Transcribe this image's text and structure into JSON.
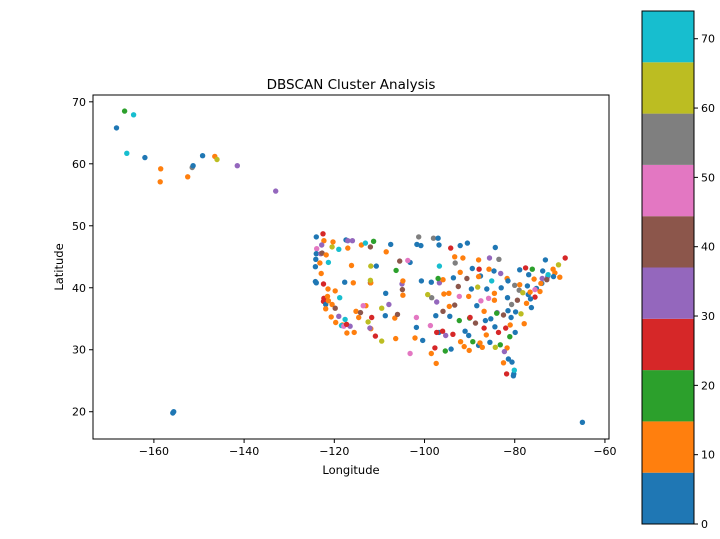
{
  "chart_data": {
    "type": "scatter",
    "title": "DBSCAN Cluster Analysis",
    "xlabel": "Longitude",
    "ylabel": "Latitude",
    "xlim": [
      -173.5,
      -59.1
    ],
    "ylim": [
      15.6,
      71.1
    ],
    "xticks": [
      -160,
      -140,
      -120,
      -100,
      -80,
      -60
    ],
    "yticks": [
      20,
      30,
      40,
      50,
      60,
      70
    ],
    "grid": false,
    "colorbar": {
      "range": [
        0,
        74
      ],
      "ticks": [
        0,
        10,
        20,
        30,
        40,
        50,
        60,
        70
      ],
      "colormap": "tab10",
      "colors": [
        "#1f77b4",
        "#ff7f0e",
        "#2ca02c",
        "#d62728",
        "#9467bd",
        "#8c564b",
        "#e377c2",
        "#7f7f7f",
        "#bcbd22",
        "#17becf"
      ]
    },
    "points": [
      [
        -166.5,
        68.5,
        18
      ],
      [
        -164.5,
        67.9,
        70
      ],
      [
        -168.3,
        65.8,
        3
      ],
      [
        -166,
        61.7,
        70
      ],
      [
        -162,
        61,
        3
      ],
      [
        -158.5,
        59.2,
        10
      ],
      [
        -158.6,
        57.1,
        10
      ],
      [
        -152.5,
        57.9,
        10
      ],
      [
        -151.5,
        59.4,
        55
      ],
      [
        -151.3,
        59.7,
        3
      ],
      [
        -149.2,
        61.3,
        3
      ],
      [
        -146.5,
        61.2,
        10
      ],
      [
        -146,
        60.7,
        62
      ],
      [
        -141.5,
        59.7,
        33
      ],
      [
        -133,
        55.6,
        33
      ],
      [
        -155.8,
        19.8,
        3
      ],
      [
        -155.6,
        20,
        3
      ],
      [
        -65,
        18.3,
        3
      ],
      [
        -124,
        48.2,
        3
      ],
      [
        -122.5,
        48.7,
        25
      ],
      [
        -122.3,
        47.6,
        10
      ],
      [
        -122.8,
        46.9,
        33
      ],
      [
        -123.9,
        46.3,
        48
      ],
      [
        -124,
        45.5,
        3
      ],
      [
        -123,
        45.5,
        33
      ],
      [
        -122.7,
        45.6,
        40
      ],
      [
        -121.8,
        45.3,
        10
      ],
      [
        -124.1,
        44.6,
        3
      ],
      [
        -123.2,
        44,
        10
      ],
      [
        -121.3,
        44.1,
        70
      ],
      [
        -124.2,
        43.4,
        3
      ],
      [
        -122.9,
        42.3,
        10
      ],
      [
        -124.2,
        41,
        3
      ],
      [
        -124,
        40.8,
        3
      ],
      [
        -122.4,
        40.6,
        25
      ],
      [
        -121.4,
        39.8,
        10
      ],
      [
        -122.3,
        38.3,
        25
      ],
      [
        -121.5,
        38.6,
        10
      ],
      [
        -122.4,
        37.8,
        25
      ],
      [
        -121.9,
        37.3,
        3
      ],
      [
        -121.3,
        37.9,
        10
      ],
      [
        -120.5,
        37.3,
        10
      ],
      [
        -119.8,
        36.7,
        40
      ],
      [
        -121.9,
        36.6,
        10
      ],
      [
        -120.7,
        35.3,
        10
      ],
      [
        -119,
        35.4,
        33
      ],
      [
        -119.7,
        34.4,
        10
      ],
      [
        -118.2,
        34,
        10
      ],
      [
        -118.4,
        33.9,
        70
      ],
      [
        -117.9,
        33.8,
        48
      ],
      [
        -117.2,
        32.7,
        10
      ],
      [
        -116.5,
        33.8,
        33
      ],
      [
        -117.3,
        34.1,
        25
      ],
      [
        -115.6,
        32.8,
        10
      ],
      [
        -117.6,
        34.9,
        70
      ],
      [
        -118.8,
        38.4,
        70
      ],
      [
        -119.8,
        39.5,
        10
      ],
      [
        -117.7,
        40.9,
        3
      ],
      [
        -115.8,
        40.8,
        10
      ],
      [
        -114.6,
        35.2,
        10
      ],
      [
        -115.2,
        36.2,
        10
      ],
      [
        -114.2,
        36,
        40
      ],
      [
        -113,
        37.1,
        10
      ],
      [
        -112,
        40.8,
        40
      ],
      [
        -111.9,
        40.8,
        10
      ],
      [
        -112,
        41.2,
        62
      ],
      [
        -111.9,
        43.5,
        62
      ],
      [
        -116.2,
        43.6,
        10
      ],
      [
        -117,
        46.4,
        10
      ],
      [
        -117.4,
        47.7,
        3
      ],
      [
        -119,
        46.2,
        70
      ],
      [
        -120.5,
        46.6,
        62
      ],
      [
        -120.3,
        47.4,
        10
      ],
      [
        -117,
        47.6,
        33
      ],
      [
        -114,
        46.9,
        10
      ],
      [
        -112,
        46.6,
        40
      ],
      [
        -111.3,
        47.5,
        18
      ],
      [
        -108.5,
        45.8,
        10
      ],
      [
        -106.6,
        35.1,
        10
      ],
      [
        -106.4,
        31.8,
        10
      ],
      [
        -104.8,
        38.8,
        10
      ],
      [
        -104.9,
        39.7,
        40
      ],
      [
        -105,
        40.6,
        33
      ],
      [
        -104.8,
        41.1,
        10
      ],
      [
        -106.3,
        42.8,
        18
      ],
      [
        -108.6,
        39.1,
        3
      ],
      [
        -110.9,
        32.2,
        25
      ],
      [
        -111.9,
        33.4,
        10
      ],
      [
        -112.1,
        33.5,
        33
      ],
      [
        -111.7,
        35.2,
        25
      ],
      [
        -109.5,
        31.4,
        62
      ],
      [
        -112.5,
        34.5,
        62
      ],
      [
        -113.6,
        37.1,
        48
      ],
      [
        -108.7,
        35.5,
        3
      ],
      [
        -103.2,
        29.4,
        48
      ],
      [
        -101.8,
        33.6,
        3
      ],
      [
        -101.8,
        35.2,
        48
      ],
      [
        -102.1,
        31.9,
        10
      ],
      [
        -100.4,
        31.5,
        3
      ],
      [
        -98.5,
        29.4,
        10
      ],
      [
        -97.7,
        30.3,
        25
      ],
      [
        -97.4,
        27.8,
        10
      ],
      [
        -95.4,
        29.8,
        18
      ],
      [
        -94.1,
        30.1,
        3
      ],
      [
        -96.8,
        32.8,
        3
      ],
      [
        -97.3,
        32.8,
        25
      ],
      [
        -97.5,
        35.5,
        3
      ],
      [
        -95.9,
        36.2,
        40
      ],
      [
        -97.3,
        37.7,
        33
      ],
      [
        -98.5,
        40.9,
        3
      ],
      [
        -96.7,
        40.8,
        33
      ],
      [
        -95.9,
        41.3,
        10
      ],
      [
        -100.8,
        46.8,
        3
      ],
      [
        -96.8,
        46.9,
        3
      ],
      [
        -96.7,
        43.5,
        70
      ],
      [
        -103.2,
        44.1,
        3
      ],
      [
        -101.3,
        48.2,
        55
      ],
      [
        -98,
        48,
        55
      ],
      [
        -97,
        48,
        3
      ],
      [
        -93.3,
        45,
        10
      ],
      [
        -92.1,
        46.8,
        3
      ],
      [
        -94.2,
        46.4,
        25
      ],
      [
        -93.6,
        41.6,
        3
      ],
      [
        -90.6,
        41.5,
        40
      ],
      [
        -92.1,
        42.5,
        10
      ],
      [
        -94.6,
        39.1,
        10
      ],
      [
        -90.2,
        38.6,
        10
      ],
      [
        -92.3,
        38.6,
        48
      ],
      [
        -93.3,
        37.2,
        40
      ],
      [
        -92.3,
        34.7,
        18
      ],
      [
        -94.4,
        35.4,
        3
      ],
      [
        -90,
        35.1,
        18
      ],
      [
        -91.2,
        30.5,
        10
      ],
      [
        -90.1,
        29.9,
        10
      ],
      [
        -93.7,
        32.5,
        25
      ],
      [
        -88,
        30.7,
        3
      ],
      [
        -86.8,
        33.5,
        25
      ],
      [
        -86.3,
        32.4,
        10
      ],
      [
        -90.2,
        32.3,
        3
      ],
      [
        -88.7,
        34.3,
        40
      ],
      [
        -86.8,
        36.2,
        10
      ],
      [
        -85.3,
        35,
        3
      ],
      [
        -83.9,
        36,
        33
      ],
      [
        -84.5,
        38,
        10
      ],
      [
        -85.8,
        38.3,
        48
      ],
      [
        -87.6,
        41.9,
        3
      ],
      [
        -88,
        41.8,
        10
      ],
      [
        -89.6,
        39.8,
        3
      ],
      [
        -88.2,
        40.1,
        62
      ],
      [
        -87.9,
        43,
        25
      ],
      [
        -89.4,
        43.1,
        3
      ],
      [
        -88,
        44.5,
        10
      ],
      [
        -85.7,
        43,
        10
      ],
      [
        -84.6,
        42.7,
        3
      ],
      [
        -83.1,
        42.3,
        33
      ],
      [
        -86.2,
        39.8,
        3
      ],
      [
        -85.1,
        41.1,
        70
      ],
      [
        -84.5,
        39.1,
        10
      ],
      [
        -83,
        40,
        3
      ],
      [
        -81.7,
        41.5,
        10
      ],
      [
        -80,
        40.4,
        55
      ],
      [
        -81.5,
        41.1,
        3
      ],
      [
        -79.9,
        32.8,
        3
      ],
      [
        -81,
        34,
        10
      ],
      [
        -80.8,
        35.2,
        3
      ],
      [
        -78.6,
        35.8,
        62
      ],
      [
        -77.9,
        34.2,
        10
      ],
      [
        -79.8,
        36.1,
        3
      ],
      [
        -82.5,
        35.6,
        40
      ],
      [
        -84.4,
        33.7,
        3
      ],
      [
        -83.6,
        32.8,
        25
      ],
      [
        -81.1,
        32.1,
        18
      ],
      [
        -82.5,
        27.9,
        10
      ],
      [
        -81.4,
        28.5,
        3
      ],
      [
        -80.2,
        26.1,
        3
      ],
      [
        -80.1,
        26.7,
        70
      ],
      [
        -80.3,
        25.8,
        3
      ],
      [
        -81.7,
        30.3,
        10
      ],
      [
        -84.3,
        30.4,
        62
      ],
      [
        -87.2,
        30.4,
        10
      ],
      [
        -82.3,
        29.7,
        33
      ],
      [
        -80.6,
        28,
        3
      ],
      [
        -81.8,
        26.1,
        25
      ],
      [
        -77.4,
        37.5,
        10
      ],
      [
        -76.3,
        36.8,
        3
      ],
      [
        -77,
        38.9,
        3
      ],
      [
        -76.6,
        39.3,
        10
      ],
      [
        -75.2,
        39.9,
        3
      ],
      [
        -75.5,
        39.7,
        48
      ],
      [
        -74,
        40.7,
        3
      ],
      [
        -74.2,
        40.7,
        10
      ],
      [
        -73.8,
        42.7,
        3
      ],
      [
        -76.1,
        43,
        18
      ],
      [
        -77.6,
        43.2,
        25
      ],
      [
        -78.9,
        42.9,
        3
      ],
      [
        -71.1,
        42.4,
        10
      ],
      [
        -71.4,
        41.8,
        3
      ],
      [
        -72.7,
        41.8,
        33
      ],
      [
        -72.6,
        42.1,
        70
      ],
      [
        -71.5,
        43,
        10
      ],
      [
        -70.3,
        43.7,
        62
      ],
      [
        -68.8,
        44.8,
        25
      ],
      [
        -73.2,
        44.5,
        3
      ],
      [
        -70,
        41.7,
        10
      ],
      [
        -79.4,
        38,
        40
      ],
      [
        -81.6,
        38.4,
        3
      ],
      [
        -80.7,
        37.3,
        55
      ],
      [
        -78.9,
        40.5,
        10
      ],
      [
        -77.2,
        40.3,
        3
      ],
      [
        -84,
        35.9,
        18
      ],
      [
        -86.5,
        34.7,
        3
      ],
      [
        -89.9,
        35.2,
        25
      ],
      [
        -88.4,
        37.1,
        3
      ],
      [
        -87.5,
        37.9,
        48
      ],
      [
        -91.5,
        44.8,
        10
      ],
      [
        -90.5,
        47.2,
        3
      ],
      [
        -84.3,
        46.5,
        3
      ],
      [
        -83.5,
        44.6,
        55
      ],
      [
        -85.6,
        44.8,
        33
      ],
      [
        -101.7,
        47,
        3
      ],
      [
        -107.5,
        47,
        3
      ],
      [
        -98.4,
        38.4,
        55
      ],
      [
        -99.3,
        38.9,
        62
      ],
      [
        -106,
        35.7,
        40
      ],
      [
        -107.9,
        37.3,
        33
      ],
      [
        -103.7,
        44.4,
        48
      ],
      [
        -116,
        47.6,
        33
      ],
      [
        -113.1,
        47.2,
        70
      ],
      [
        -109.5,
        36.7,
        62
      ],
      [
        -110.7,
        43.5,
        3
      ],
      [
        -105.5,
        44.3,
        40
      ],
      [
        -100.7,
        41.1,
        3
      ],
      [
        -97,
        41.5,
        18
      ],
      [
        -95.7,
        39,
        10
      ],
      [
        -94.5,
        37,
        10
      ],
      [
        -93.2,
        44,
        55
      ],
      [
        -92.5,
        40.2,
        40
      ],
      [
        -96,
        33,
        25
      ],
      [
        -98.7,
        33.9,
        48
      ],
      [
        -95.3,
        32.3,
        33
      ],
      [
        -92,
        31.3,
        10
      ],
      [
        -91,
        33,
        3
      ],
      [
        -89.3,
        31.3,
        18
      ],
      [
        -87.7,
        31.1,
        10
      ],
      [
        -85.5,
        31.2,
        3
      ],
      [
        -83.2,
        30.8,
        18
      ],
      [
        -82,
        33.5,
        25
      ],
      [
        -81.5,
        36.3,
        3
      ],
      [
        -79,
        39.6,
        55
      ],
      [
        -75.7,
        41.4,
        10
      ],
      [
        -76.9,
        42.1,
        3
      ],
      [
        -73.9,
        41.5,
        33
      ],
      [
        -72.9,
        41.3,
        40
      ],
      [
        -74.4,
        39.4,
        10
      ],
      [
        -75.5,
        38.5,
        25
      ],
      [
        -76.5,
        38.2,
        3
      ],
      [
        -78.2,
        39.2,
        62
      ]
    ]
  }
}
